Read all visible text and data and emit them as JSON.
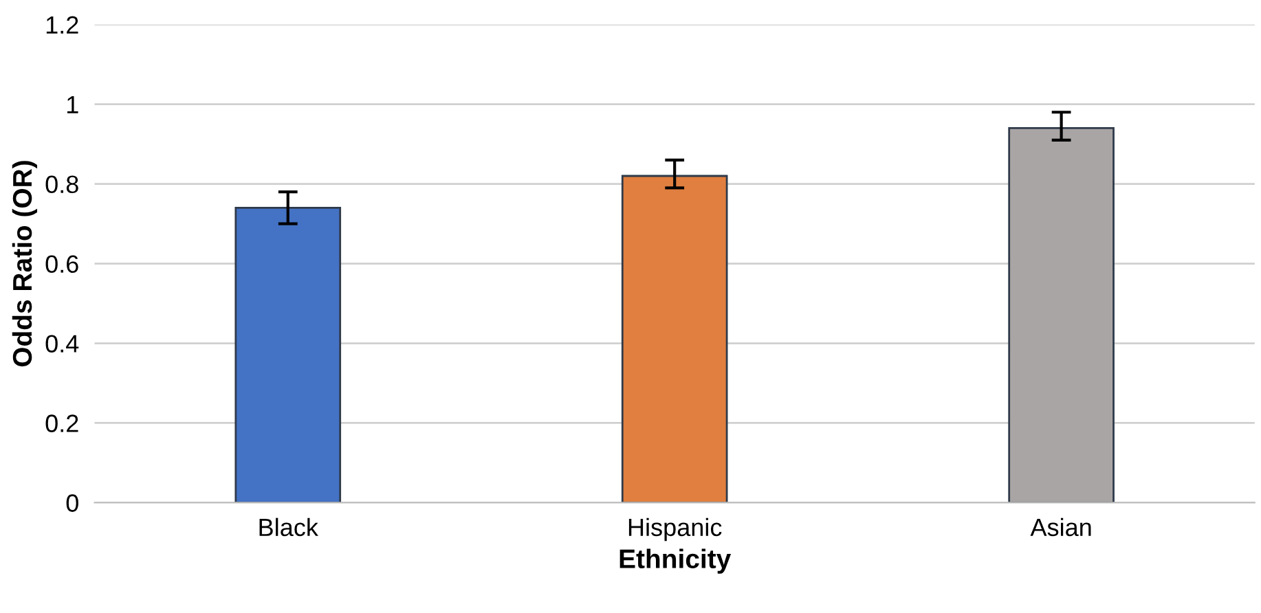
{
  "chart_data": {
    "type": "bar",
    "xlabel": "Ethnicity",
    "ylabel": "Odds Ratio (OR)",
    "categories": [
      "Black",
      "Hispanic",
      "Asian"
    ],
    "values": [
      0.74,
      0.82,
      0.94
    ],
    "colors": [
      "#4472c4",
      "#e07f3f",
      "#a9a5a5"
    ],
    "errors": [
      [
        0.7,
        0.78
      ],
      [
        0.79,
        0.86
      ],
      [
        0.91,
        0.98
      ]
    ],
    "ylim": [
      0,
      1.2
    ],
    "yticks": [
      0,
      0.2,
      0.4,
      0.6,
      0.8,
      1,
      1.2
    ],
    "grid": "y"
  }
}
